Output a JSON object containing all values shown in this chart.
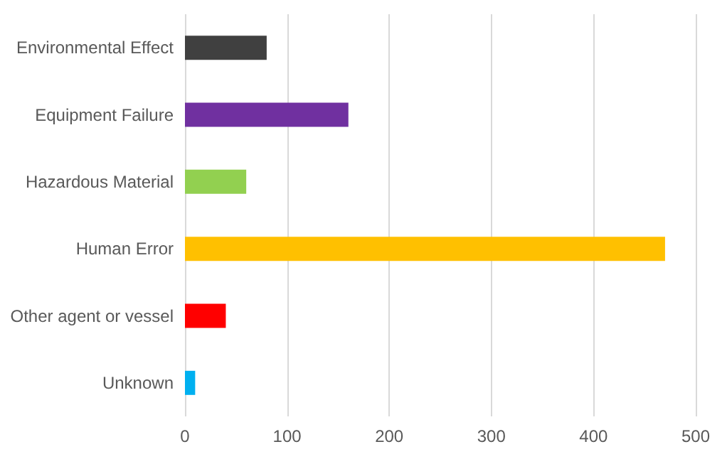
{
  "chart_data": {
    "type": "bar",
    "orientation": "horizontal",
    "categories": [
      "Environmental Effect",
      "Equipment Failure",
      "Hazardous Material",
      "Human Error",
      "Other agent or vessel",
      "Unknown"
    ],
    "values": [
      80,
      160,
      60,
      470,
      40,
      10
    ],
    "colors": [
      "#404040",
      "#7030a0",
      "#92d050",
      "#ffc000",
      "#ff0000",
      "#00b0f0"
    ],
    "xlim": [
      0,
      500
    ],
    "xticks": [
      0,
      100,
      200,
      300,
      400,
      500
    ],
    "grid": "x"
  }
}
